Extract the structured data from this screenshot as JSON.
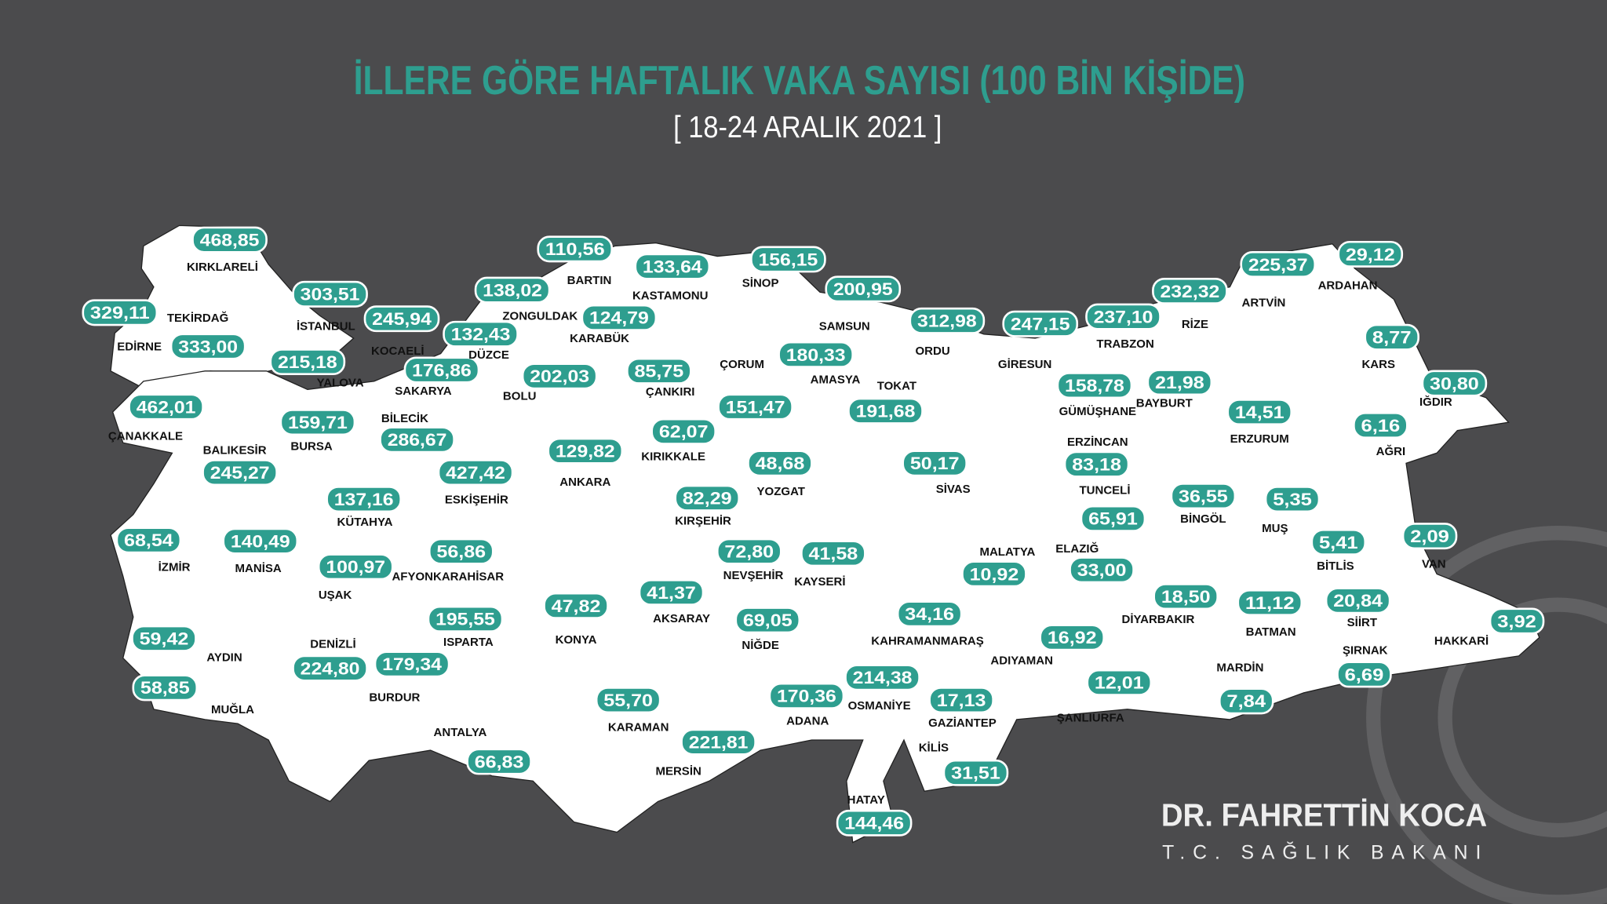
{
  "header": {
    "title": "İLLERE GÖRE HAFTALIK VAKA SAYISI (100 BİN KİŞİDE)",
    "subtitle": "[ 18-24 ARALIK 2021 ]"
  },
  "signature": {
    "name": "DR. FAHRETTİN KOCA",
    "position": "T.C. SAĞLIK BAKANI"
  },
  "colors": {
    "background": "#4b4b4d",
    "accent": "#2e9e8f",
    "land": "#ffffff"
  },
  "provinces": [
    {
      "name": "KIRKLARELİ",
      "value": "468,85"
    },
    {
      "name": "EDİRNE",
      "value": "329,11"
    },
    {
      "name": "TEKİRDAĞ",
      "value": "333,00"
    },
    {
      "name": "İSTANBUL",
      "value": "303,51"
    },
    {
      "name": "KOCAELİ",
      "value": "245,94"
    },
    {
      "name": "YALOVA",
      "value": "215,18"
    },
    {
      "name": "ÇANAKKALE",
      "value": "462,01"
    },
    {
      "name": "BALIKESİR",
      "value": "245,27"
    },
    {
      "name": "BURSA",
      "value": "159,71"
    },
    {
      "name": "SAKARYA",
      "value": "176,86"
    },
    {
      "name": "DÜZCE",
      "value": "132,43"
    },
    {
      "name": "ZONGULDAK",
      "value": "138,02"
    },
    {
      "name": "BARTIN",
      "value": "110,56"
    },
    {
      "name": "KARABÜK",
      "value": "124,79"
    },
    {
      "name": "KASTAMONU",
      "value": "133,64"
    },
    {
      "name": "SİNOP",
      "value": "156,15"
    },
    {
      "name": "SAMSUN",
      "value": "200,95"
    },
    {
      "name": "ORDU",
      "value": "312,98"
    },
    {
      "name": "GİRESUN",
      "value": "247,15"
    },
    {
      "name": "TRABZON",
      "value": "237,10"
    },
    {
      "name": "RİZE",
      "value": "232,32"
    },
    {
      "name": "ARTVİN",
      "value": "225,37"
    },
    {
      "name": "ARDAHAN",
      "value": "29,12"
    },
    {
      "name": "KARS",
      "value": "8,77"
    },
    {
      "name": "IĞDIR",
      "value": "30,80"
    },
    {
      "name": "AĞRI",
      "value": "6,16"
    },
    {
      "name": "ERZURUM",
      "value": "14,51"
    },
    {
      "name": "BAYBURT",
      "value": "21,98"
    },
    {
      "name": "GÜMÜŞHANE",
      "value": "158,78"
    },
    {
      "name": "ERZİNCAN",
      "value": "83,18"
    },
    {
      "name": "TUNCELİ",
      "value": "65,91"
    },
    {
      "name": "ELAZIĞ",
      "value": "33,00"
    },
    {
      "name": "BİNGÖL",
      "value": "36,55"
    },
    {
      "name": "MUŞ",
      "value": "5,35"
    },
    {
      "name": "BİTLİS",
      "value": "5,41"
    },
    {
      "name": "VAN",
      "value": "2,09"
    },
    {
      "name": "SİİRT",
      "value": "20,84"
    },
    {
      "name": "BATMAN",
      "value": "11,12"
    },
    {
      "name": "HAKKARİ",
      "value": "3,92"
    },
    {
      "name": "ŞIRNAK",
      "value": "6,69"
    },
    {
      "name": "MARDİN",
      "value": "7,84"
    },
    {
      "name": "DİYARBAKIR",
      "value": "18,50"
    },
    {
      "name": "ŞANLIURFA",
      "value": "12,01"
    },
    {
      "name": "ADIYAMAN",
      "value": "16,92"
    },
    {
      "name": "MALATYA",
      "value": "10,92"
    },
    {
      "name": "KAHRAMANMARAŞ",
      "value": "34,16"
    },
    {
      "name": "GAZİANTEP",
      "value": "17,13"
    },
    {
      "name": "KİLİS",
      "value": "31,51"
    },
    {
      "name": "OSMANİYE",
      "value": "214,38"
    },
    {
      "name": "HATAY",
      "value": "144,46"
    },
    {
      "name": "ADANA",
      "value": "170,36"
    },
    {
      "name": "MERSİN",
      "value": "221,81"
    },
    {
      "name": "KARAMAN",
      "value": "55,70"
    },
    {
      "name": "NİĞDE",
      "value": "69,05"
    },
    {
      "name": "AKSARAY",
      "value": "41,37"
    },
    {
      "name": "NEVŞEHİR",
      "value": "72,80"
    },
    {
      "name": "KAYSERİ",
      "value": "41,58"
    },
    {
      "name": "KIRŞEHİR",
      "value": "82,29"
    },
    {
      "name": "YOZGAT",
      "value": "48,68"
    },
    {
      "name": "KIRIKKALE",
      "value": "62,07"
    },
    {
      "name": "ÇORUM",
      "value": "151,47"
    },
    {
      "name": "ÇANKIRI",
      "value": "85,75"
    },
    {
      "name": "AMASYA",
      "value": "180,33"
    },
    {
      "name": "TOKAT",
      "value": "191,68"
    },
    {
      "name": "SİVAS",
      "value": "50,17"
    },
    {
      "name": "BOLU",
      "value": "202,03"
    },
    {
      "name": "ANKARA",
      "value": "129,82"
    },
    {
      "name": "ESKİŞEHİR",
      "value": "427,42"
    },
    {
      "name": "BİLECİK",
      "value": "286,67"
    },
    {
      "name": "KÜTAHYA",
      "value": "137,16"
    },
    {
      "name": "UŞAK",
      "value": "100,97"
    },
    {
      "name": "AFYONKARAHİSAR",
      "value": "56,86"
    },
    {
      "name": "MANİSA",
      "value": "140,49"
    },
    {
      "name": "İZMİR",
      "value": "68,54"
    },
    {
      "name": "AYDIN",
      "value": "59,42"
    },
    {
      "name": "MUĞLA",
      "value": "58,85"
    },
    {
      "name": "DENİZLİ",
      "value": "224,80"
    },
    {
      "name": "BURDUR",
      "value": "179,34"
    },
    {
      "name": "ISPARTA",
      "value": "195,55"
    },
    {
      "name": "ANTALYA",
      "value": "66,83"
    },
    {
      "name": "KONYA",
      "value": "47,82"
    }
  ]
}
